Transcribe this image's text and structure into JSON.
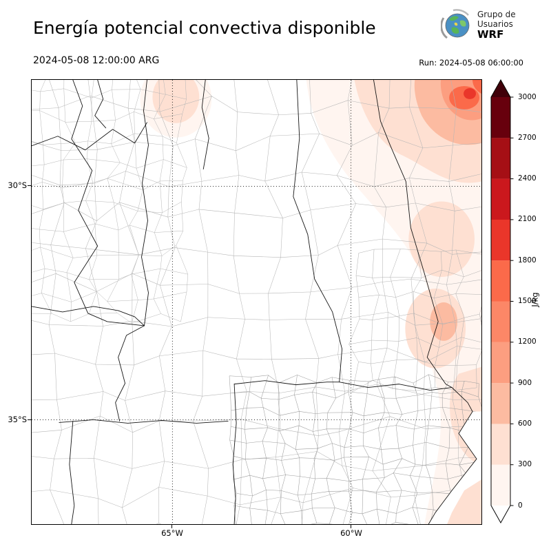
{
  "header": {
    "title": "Energía potencial convectiva disponible",
    "valid_time": "2024-05-08 12:00:00 ARG",
    "run_time": "Run: 2024-05-08 06:00:00",
    "logo": {
      "line1": "Grupo de",
      "line2": "Usuarios",
      "line3": "WRF"
    }
  },
  "map": {
    "y_tick_labels": [
      "30°S",
      "35°S"
    ],
    "x_tick_labels": [
      "65°W",
      "60°W"
    ]
  },
  "colorbar": {
    "unit_label": "J/kg",
    "tick_labels_top_to_bottom": [
      "3000",
      "2700",
      "2400",
      "2100",
      "1800",
      "1500",
      "1200",
      "900",
      "600",
      "300",
      "0"
    ],
    "segment_colors_top_to_bottom": [
      "#67000d",
      "#a50f15",
      "#cb181d",
      "#ea362a",
      "#fb6a4a",
      "#fc8767",
      "#fc9e80",
      "#fcbba1",
      "#fee0d2",
      "#fff5f0"
    ],
    "over_arrow_color": "#400009",
    "under_arrow_color": "#ffffff"
  },
  "chart_data": {
    "type": "heatmap",
    "title": "Energía potencial convectiva disponible",
    "variable": "CAPE (convective available potential energy)",
    "units": "J/kg",
    "valid_time": "2024-05-08 12:00:00 ARG",
    "model_run": "Run: 2024-05-08 06:00:00",
    "colorbar_levels": [
      0,
      300,
      600,
      900,
      1200,
      1500,
      1800,
      2100,
      2400,
      2700,
      3000
    ],
    "lat_gridlines_deg": [
      -30,
      -35
    ],
    "lon_gridlines_deg": [
      -65,
      -60
    ],
    "legend_position": "right vertical colorbar with over/under arrows",
    "grid": "dotted lat/lon gridlines",
    "regions": [
      {
        "area": "far northeast corner of map",
        "cape_jkg": "900–2100, local peak near 1500–2100"
      },
      {
        "area": "northeast quadrant / upper east band",
        "cape_jkg": "300–900"
      },
      {
        "area": "eastern edge patches (litoral, mid and lower east)",
        "cape_jkg": "0–600"
      },
      {
        "area": "small patch near top center",
        "cape_jkg": "0–600"
      },
      {
        "area": "center, west and south of domain",
        "cape_jkg": "~0"
      }
    ]
  }
}
